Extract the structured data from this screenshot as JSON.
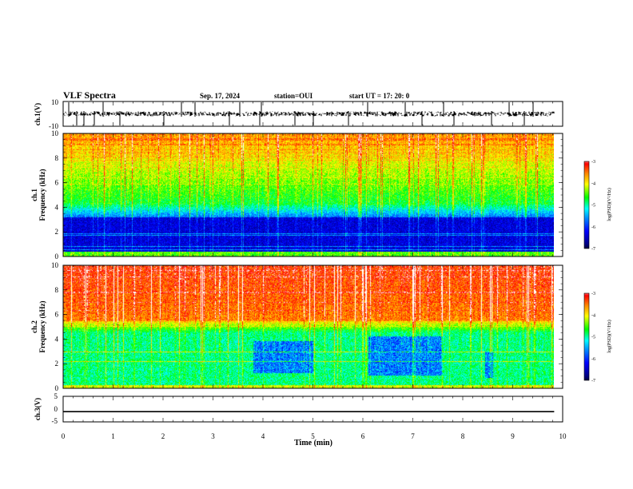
{
  "header": {
    "title": "VLF Spectra",
    "date": "Sep. 17, 2024",
    "station": "station=OUI",
    "start_ut": "start UT =   17: 20: 0"
  },
  "chart_data": [
    {
      "type": "line",
      "panel": "ch1-waveform",
      "ylabel": "ch.1(V)",
      "ylim": [
        -10,
        10
      ],
      "ytick_labels": [
        "10",
        "-10"
      ],
      "xlim": [
        0,
        10
      ],
      "description_level": -3
    },
    {
      "type": "heatmap",
      "panel": "ch1-spectrogram",
      "ylabel_line1": "ch.1",
      "ylabel_line2": "Frequency (kHz)",
      "ylim": [
        0,
        10
      ],
      "ytick_labels": [
        "0",
        "2",
        "4",
        "6",
        "8",
        "10"
      ],
      "xlim": [
        0,
        9.83
      ],
      "colorbar": {
        "label": "log(PSD)(V²/Hz)",
        "range": [
          -7,
          -3
        ],
        "ticks": [
          "-3",
          "-4",
          "-5",
          "-6",
          "-7"
        ]
      }
    },
    {
      "type": "heatmap",
      "panel": "ch2-spectrogram",
      "ylabel_line1": "ch.2",
      "ylabel_line2": "Frequency (kHz)",
      "ylim": [
        0,
        10
      ],
      "ytick_labels": [
        "0",
        "2",
        "4",
        "6",
        "8",
        "10"
      ],
      "xlim": [
        0,
        9.83
      ],
      "colorbar": {
        "label": "log(PSD)(V²/Hz)",
        "range": [
          -7,
          -3
        ],
        "ticks": [
          "-3",
          "-4",
          "-5",
          "-6",
          "-7"
        ]
      }
    },
    {
      "type": "line",
      "panel": "ch3-waveform",
      "ylabel": "ch.3(V)",
      "ylim": [
        -5,
        5
      ],
      "ytick_labels": [
        "5",
        "0",
        "-5"
      ],
      "xlim": [
        0,
        10
      ],
      "x": [
        0,
        9.83
      ],
      "y": [
        -1,
        -1
      ]
    }
  ],
  "xaxis": {
    "label": "Time (min)",
    "tick_labels": [
      "0",
      "1",
      "2",
      "3",
      "4",
      "5",
      "6",
      "7",
      "8",
      "9",
      "10"
    ]
  },
  "colormap": [
    "#000080",
    "#0000ff",
    "#0080ff",
    "#00ffff",
    "#00ff00",
    "#ffff00",
    "#ff8000",
    "#ff0000",
    "#ffffff"
  ]
}
